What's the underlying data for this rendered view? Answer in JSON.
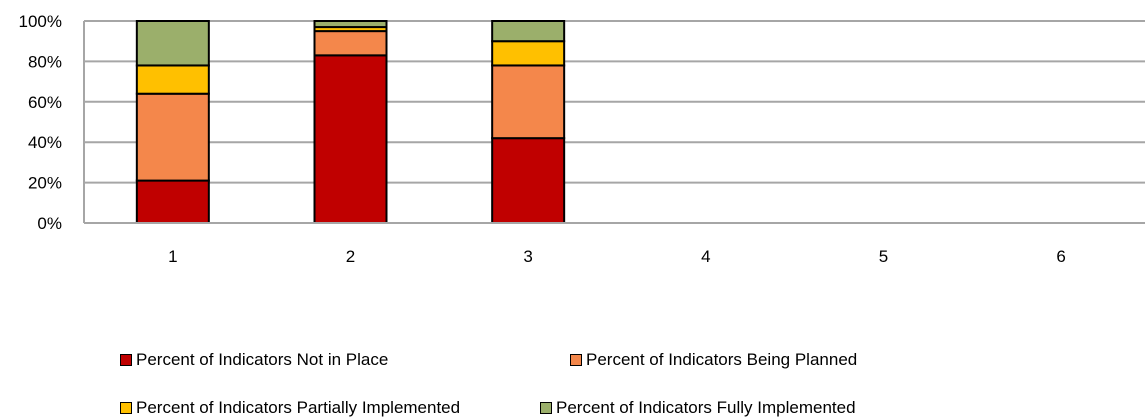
{
  "chart_data": {
    "type": "bar",
    "stacked": true,
    "categories": [
      "1",
      "2",
      "3",
      "4",
      "5",
      "6"
    ],
    "ylim": [
      0,
      100
    ],
    "yticks": [
      "0%",
      "20%",
      "40%",
      "60%",
      "80%",
      "100%"
    ],
    "grid": true,
    "legend_position": "bottom",
    "series": [
      {
        "name": "Percent of Indicators Not in Place",
        "color": "#C00000",
        "values": [
          21,
          83,
          42,
          null,
          null,
          null
        ]
      },
      {
        "name": "Percent of Indicators Being Planned",
        "color": "#F4874B",
        "values": [
          43,
          12,
          36,
          null,
          null,
          null
        ]
      },
      {
        "name": "Percent of Indicators Partially Implemented",
        "color": "#FFC000",
        "values": [
          14,
          2,
          12,
          null,
          null,
          null
        ]
      },
      {
        "name": "Percent of Indicators Fully Implemented",
        "color": "#9BAF6B",
        "values": [
          22,
          3,
          10,
          null,
          null,
          null
        ]
      }
    ]
  }
}
